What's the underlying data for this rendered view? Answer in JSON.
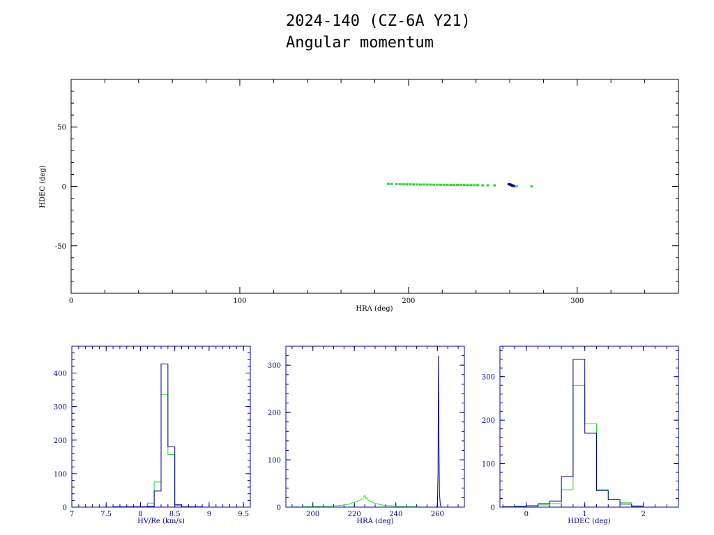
{
  "title": {
    "line1": "2024-140 (CZ-6A Y21)",
    "line2": "Angular momentum"
  },
  "colors": {
    "green": "#22dd22",
    "blue": "#0000a0",
    "black": "#000000"
  },
  "chart_data": [
    {
      "type": "scatter",
      "xlabel": "HRA (deg)",
      "ylabel": "HDEC (deg)",
      "xlim": [
        0,
        360
      ],
      "ylim": [
        -90,
        90
      ],
      "xticks": [
        0,
        100,
        200,
        300
      ],
      "yticks": [
        -50,
        0,
        50
      ],
      "series": [
        {
          "color": "green",
          "x": [
            188,
            190,
            193,
            195,
            197,
            199,
            201,
            203,
            205,
            207,
            209,
            211,
            213,
            215,
            217,
            219,
            221,
            223,
            225,
            227,
            229,
            231,
            233,
            235,
            237,
            239,
            241,
            244,
            247,
            251,
            262,
            264,
            273
          ],
          "y": [
            2.1,
            2.0,
            1.9,
            1.8,
            1.8,
            1.7,
            1.7,
            1.6,
            1.6,
            1.5,
            1.5,
            1.5,
            1.4,
            1.4,
            1.4,
            1.3,
            1.3,
            1.3,
            1.2,
            1.2,
            1.2,
            1.1,
            1.1,
            1.1,
            1.0,
            1.0,
            1.0,
            0.9,
            0.9,
            0.8,
            0.3,
            0.1,
            0.0
          ]
        },
        {
          "color": "blue",
          "x": [
            259.5,
            260.0,
            260.4,
            260.8,
            261.1,
            261.4,
            261.7,
            262.0,
            262.3
          ],
          "y": [
            1.8,
            1.6,
            1.4,
            1.2,
            1.0,
            0.8,
            0.6,
            0.4,
            0.2
          ]
        }
      ]
    },
    {
      "type": "histogram",
      "xlabel": "HV/Re (km/s)",
      "xlim": [
        7,
        9.6
      ],
      "ylim": [
        0,
        480
      ],
      "xticks": [
        "7",
        "7.5",
        "8",
        "8.5",
        "9",
        "9.5"
      ],
      "yticks": [
        0,
        100,
        200,
        300,
        400
      ],
      "bin_edges": [
        7.6,
        7.9,
        8.1,
        8.2,
        8.3,
        8.4,
        8.5,
        8.6,
        8.9
      ],
      "series": [
        {
          "color": "green",
          "values": [
            1,
            1,
            12,
            75,
            335,
            157,
            5,
            1
          ]
        },
        {
          "color": "blue",
          "values": [
            1,
            1,
            2,
            48,
            427,
            180,
            7,
            1
          ]
        }
      ]
    },
    {
      "type": "histogram",
      "xlabel": "HRA (deg)",
      "xlim": [
        187,
        273
      ],
      "ylim": [
        0,
        340
      ],
      "xticks": [
        "200",
        "220",
        "240",
        "260"
      ],
      "yticks": [
        0,
        100,
        200,
        300
      ],
      "series": [
        {
          "color": "green",
          "x": [
            188,
            190,
            192,
            194,
            196,
            198,
            200,
            202,
            204,
            206,
            208,
            210,
            212,
            214,
            216,
            217,
            218,
            219,
            220,
            221,
            222,
            223,
            224,
            224.5,
            225,
            225.5,
            226,
            226.5,
            227,
            228,
            229,
            230,
            231,
            232,
            233,
            234,
            236,
            238,
            240,
            242,
            244,
            246,
            248,
            250,
            252,
            254
          ],
          "y": [
            0,
            0,
            1,
            0,
            1,
            1,
            1,
            2,
            1,
            2,
            2,
            3,
            3,
            4,
            5,
            6,
            7,
            9,
            10,
            12,
            13,
            15,
            17,
            22,
            25,
            18,
            20,
            15,
            14,
            12,
            9,
            8,
            7,
            6,
            5,
            4,
            3,
            3,
            2,
            2,
            1,
            1,
            1,
            1,
            0,
            0
          ]
        },
        {
          "color": "blue",
          "x": [
            187,
            259.5,
            260.0,
            260.3,
            260.5,
            260.7,
            261.0,
            261.4,
            262,
            273
          ],
          "y": [
            0,
            0,
            3,
            70,
            320,
            160,
            30,
            5,
            0,
            0
          ]
        }
      ]
    },
    {
      "type": "histogram",
      "xlabel": "HDEC (deg)",
      "xlim": [
        -0.45,
        2.6
      ],
      "ylim": [
        0,
        370
      ],
      "xticks": [
        "0",
        "1",
        "2"
      ],
      "yticks": [
        0,
        100,
        200,
        300
      ],
      "bin_edges": [
        -0.4,
        -0.2,
        0.0,
        0.2,
        0.4,
        0.6,
        0.8,
        1.0,
        1.2,
        1.4,
        1.6,
        1.8,
        2.0
      ],
      "series": [
        {
          "color": "green",
          "values": [
            1,
            2,
            3,
            5,
            8,
            40,
            280,
            192,
            40,
            18,
            10,
            3
          ]
        },
        {
          "color": "blue",
          "values": [
            1,
            2,
            3,
            8,
            14,
            70,
            340,
            170,
            38,
            17,
            7,
            2
          ]
        }
      ]
    }
  ]
}
